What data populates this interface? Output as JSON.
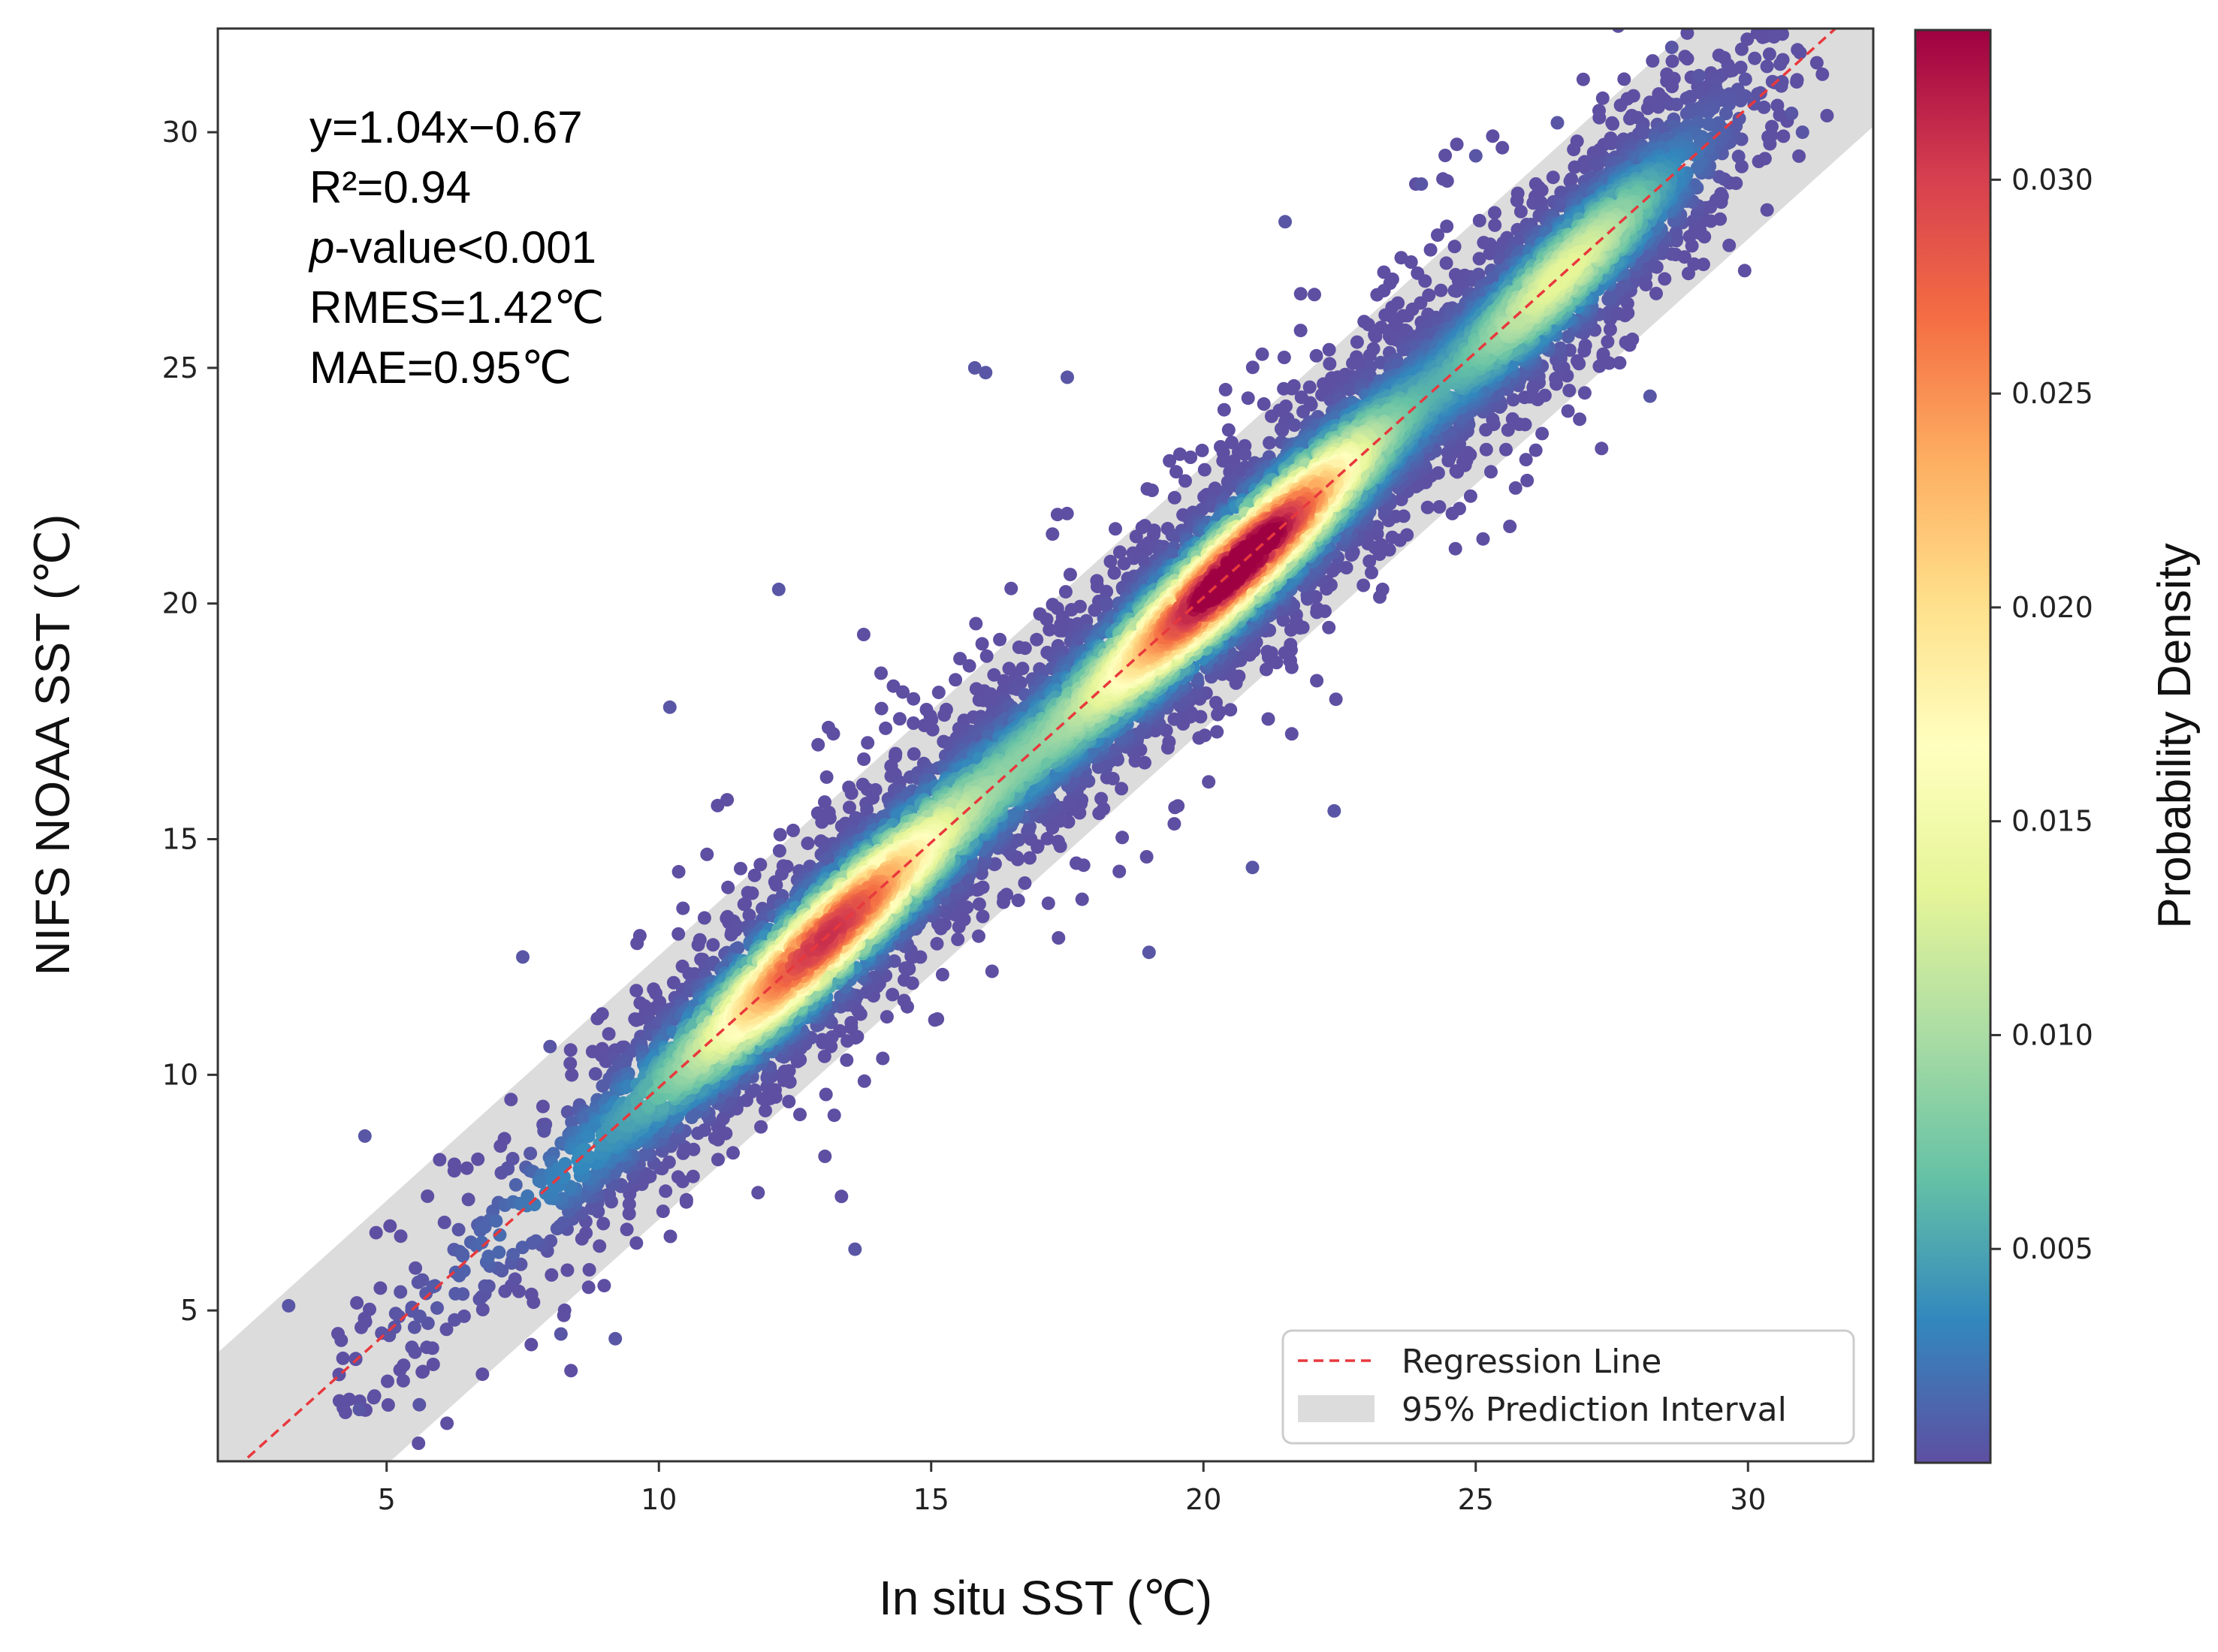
{
  "chart_data": {
    "type": "scatter",
    "title": "",
    "xlabel": "In situ SST (℃)",
    "ylabel": "NIFS NOAA SST (℃)",
    "xlim": [
      1.9,
      32.3
    ],
    "ylim": [
      1.8,
      32.2
    ],
    "xticks": [
      5,
      10,
      15,
      20,
      25,
      30
    ],
    "yticks": [
      5,
      10,
      15,
      20,
      25,
      30
    ],
    "x_tick_labels": [
      "5",
      "10",
      "15",
      "20",
      "25",
      "30"
    ],
    "y_tick_labels": [
      "5",
      "10",
      "15",
      "20",
      "25",
      "30"
    ],
    "grid": false,
    "regression": {
      "slope": 1.04,
      "intercept": -0.67,
      "style": "dashed",
      "color": "#e8383d"
    },
    "prediction_interval_halfwidth": 2.8,
    "statistics": {
      "equation": "y=1.04x−0.67",
      "r2": "R²=0.94",
      "p_value_symbol": "p",
      "p_value_rest": "-value<0.001",
      "rmse": "RMES=1.42℃",
      "mae": "MAE=0.95℃"
    },
    "legend": {
      "placement": "lower-right",
      "entries": [
        "Regression Line",
        "95% Prediction Interval"
      ]
    },
    "colorbar": {
      "label": "Probability Density",
      "min": 0.0,
      "max": 0.0335,
      "ticks": [
        0.005,
        0.01,
        0.015,
        0.02,
        0.025,
        0.03
      ],
      "tick_labels": [
        "0.005",
        "0.010",
        "0.015",
        "0.020",
        "0.025",
        "0.030"
      ],
      "colormap": "Spectral_r"
    },
    "density_peaks": [
      {
        "x": 20.7,
        "y": 20.9,
        "density": 0.0335
      },
      {
        "x": 13.0,
        "y": 12.8,
        "density": 0.028
      }
    ],
    "n_points_approx": 9000,
    "outlier_points": [
      [
        3.2,
        5.1
      ],
      [
        4.6,
        8.7
      ],
      [
        4.5,
        2.9
      ],
      [
        5.6,
        3.0
      ],
      [
        7.5,
        12.5
      ],
      [
        8.2,
        4.5
      ],
      [
        9.2,
        4.4
      ],
      [
        10.2,
        17.8
      ],
      [
        12.2,
        20.3
      ],
      [
        13.6,
        6.3
      ],
      [
        15.8,
        25.0
      ],
      [
        16.0,
        24.9
      ],
      [
        17.5,
        24.8
      ],
      [
        19.0,
        12.6
      ],
      [
        20.9,
        14.4
      ],
      [
        21.5,
        28.1
      ],
      [
        22.4,
        15.6
      ],
      [
        24.0,
        28.9
      ],
      [
        28.2,
        24.4
      ],
      [
        28.6,
        31.8
      ],
      [
        29.1,
        31.2
      ],
      [
        30.8,
        30.4
      ],
      [
        31.0,
        30.0
      ],
      [
        26.5,
        30.2
      ],
      [
        25.0,
        29.5
      ],
      [
        8.0,
        10.6
      ]
    ],
    "colors": {
      "interval_fill": "#dcdcdc",
      "regression": "#e8383d",
      "axes": "#333333"
    }
  }
}
